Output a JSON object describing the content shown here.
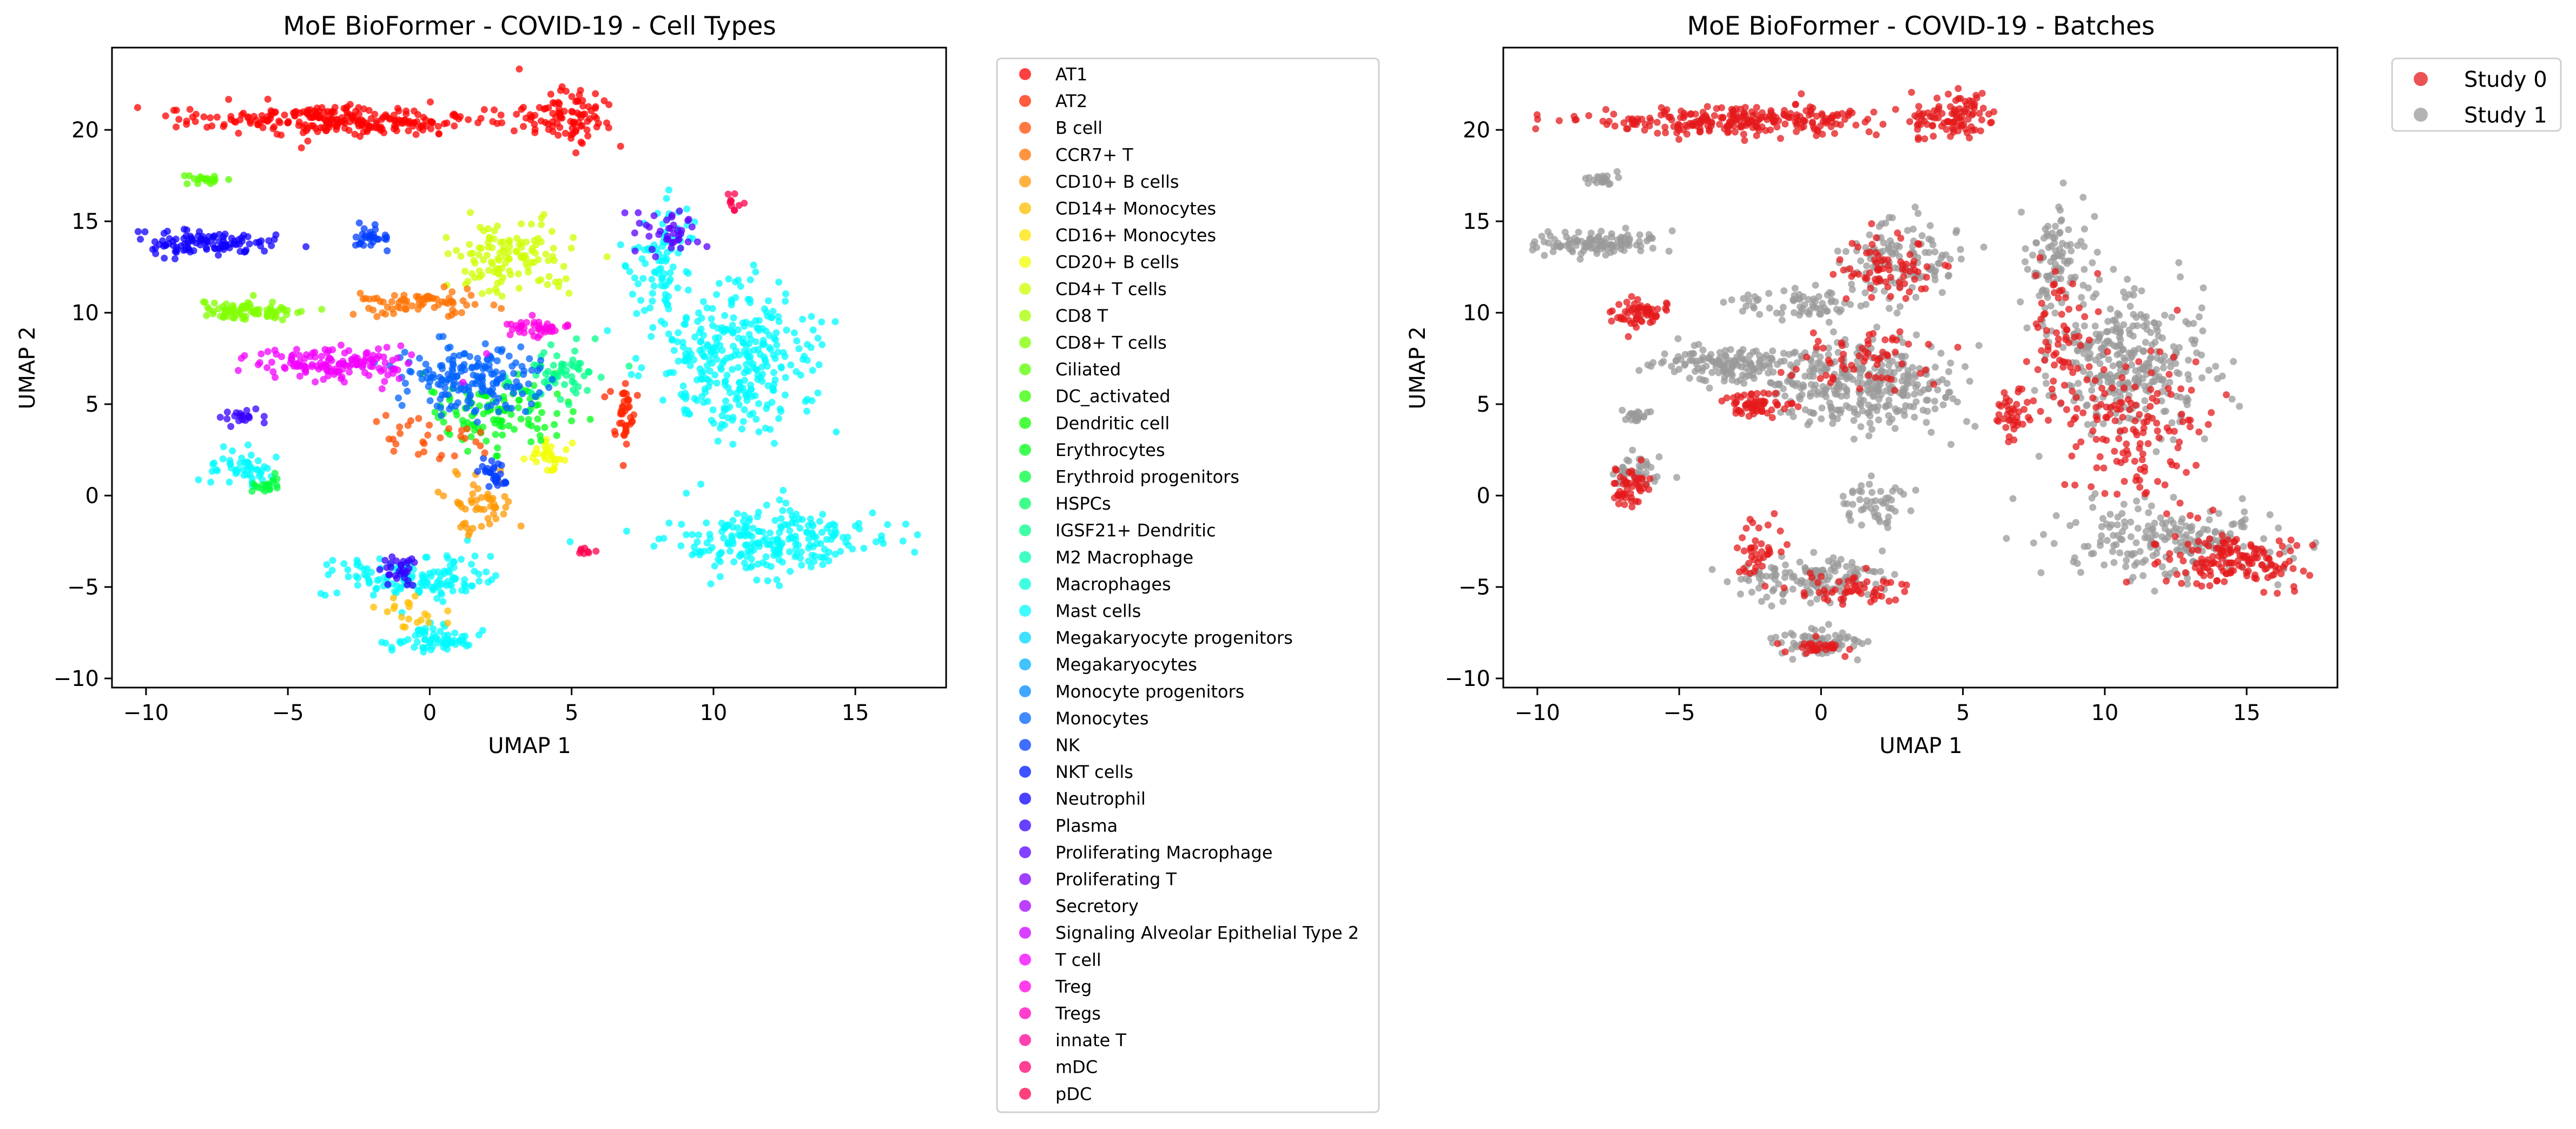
{
  "chart_data": [
    {
      "type": "scatter",
      "title": "MoE BioFormer - COVID-19 - Cell Types",
      "xlabel": "UMAP 1",
      "ylabel": "UMAP 2",
      "xlim": [
        -11.2,
        18.2
      ],
      "ylim": [
        -10.5,
        24.5
      ],
      "xticks": [
        -10,
        -5,
        0,
        5,
        10,
        15
      ],
      "yticks": [
        -10,
        -5,
        0,
        5,
        10,
        15,
        20
      ],
      "xtick_labels": [
        "−10",
        "−5",
        "0",
        "5",
        "10",
        "15"
      ],
      "ytick_labels": [
        "−10",
        "−5",
        "0",
        "5",
        "10",
        "15",
        "20"
      ],
      "grid": false,
      "legend_position": "outside-right",
      "legend": [
        {
          "label": "AT1",
          "color": "#ff0000"
        },
        {
          "label": "AT2",
          "color": "#ff2600"
        },
        {
          "label": "B cell",
          "color": "#ff4c00"
        },
        {
          "label": "CCR7+ T",
          "color": "#ff7200"
        },
        {
          "label": "CD10+ B cells",
          "color": "#ff9800"
        },
        {
          "label": "CD14+ Monocytes",
          "color": "#ffbe00"
        },
        {
          "label": "CD16+ Monocytes",
          "color": "#ffe400"
        },
        {
          "label": "CD20+ B cells",
          "color": "#f3ff00"
        },
        {
          "label": "CD4+ T cells",
          "color": "#cdff00"
        },
        {
          "label": "CD8 T",
          "color": "#a7ff00"
        },
        {
          "label": "CD8+ T cells",
          "color": "#81ff00"
        },
        {
          "label": "Ciliated",
          "color": "#5bff00"
        },
        {
          "label": "DC_activated",
          "color": "#35ff00"
        },
        {
          "label": "Dendritic cell",
          "color": "#0fff00"
        },
        {
          "label": "Erythrocytes",
          "color": "#00ff17"
        },
        {
          "label": "Erythroid progenitors",
          "color": "#00ff3d"
        },
        {
          "label": "HSPCs",
          "color": "#00ff63"
        },
        {
          "label": "IGSF21+ Dendritic",
          "color": "#00ff89"
        },
        {
          "label": "M2 Macrophage",
          "color": "#00ffaf"
        },
        {
          "label": "Macrophages",
          "color": "#00ffd5"
        },
        {
          "label": "Mast cells",
          "color": "#00fbff"
        },
        {
          "label": "Megakaryocyte progenitors",
          "color": "#00d5ff"
        },
        {
          "label": "Megakaryocytes",
          "color": "#00afff"
        },
        {
          "label": "Monocyte progenitors",
          "color": "#0089ff"
        },
        {
          "label": "Monocytes",
          "color": "#0063ff"
        },
        {
          "label": "NK",
          "color": "#003dff"
        },
        {
          "label": "NKT cells",
          "color": "#0017ff"
        },
        {
          "label": "Neutrophil",
          "color": "#0f00ff"
        },
        {
          "label": "Plasma",
          "color": "#3500ff"
        },
        {
          "label": "Proliferating Macrophage",
          "color": "#5b00ff"
        },
        {
          "label": "Proliferating T",
          "color": "#8100ff"
        },
        {
          "label": "Secretory",
          "color": "#a700ff"
        },
        {
          "label": "Signaling Alveolar Epithelial Type 2",
          "color": "#cd00ff"
        },
        {
          "label": "T cell",
          "color": "#f300ff"
        },
        {
          "label": "Treg",
          "color": "#ff00e4"
        },
        {
          "label": "Tregs",
          "color": "#ff00be"
        },
        {
          "label": "innate T",
          "color": "#ff0098"
        },
        {
          "label": "mDC",
          "color": "#ff0072"
        },
        {
          "label": "pDC",
          "color": "#ff004c"
        }
      ],
      "clusters": [
        {
          "group": "AT1",
          "cx": -3.0,
          "cy": 20.5,
          "sx": 4.8,
          "sy": 0.7,
          "n": 260
        },
        {
          "group": "AT1",
          "cx": 4.8,
          "cy": 20.8,
          "sx": 1.4,
          "sy": 1.3,
          "n": 90
        },
        {
          "group": "AT2",
          "cx": 6.8,
          "cy": 4.5,
          "sx": 0.5,
          "sy": 1.4,
          "n": 40
        },
        {
          "group": "Mast cells",
          "cx": 10.8,
          "cy": 7.5,
          "sx": 2.5,
          "sy": 3.5,
          "n": 320
        },
        {
          "group": "Mast cells",
          "cx": 12.0,
          "cy": -2.5,
          "sx": 3.5,
          "sy": 1.7,
          "n": 230
        },
        {
          "group": "Mast cells",
          "cx": 8.2,
          "cy": 13.0,
          "sx": 1.0,
          "sy": 2.7,
          "n": 90
        },
        {
          "group": "Mast cells",
          "cx": -0.5,
          "cy": -4.5,
          "sx": 2.5,
          "sy": 1.1,
          "n": 140
        },
        {
          "group": "Mast cells",
          "cx": 0.0,
          "cy": -8.0,
          "sx": 1.4,
          "sy": 0.7,
          "n": 70
        },
        {
          "group": "Mast cells",
          "cx": -6.5,
          "cy": 1.5,
          "sx": 1.0,
          "sy": 1.0,
          "n": 50
        },
        {
          "group": "CD4+ T cells",
          "cx": 2.8,
          "cy": 13.0,
          "sx": 2.0,
          "sy": 1.8,
          "n": 120
        },
        {
          "group": "CD20+ B cells",
          "cx": 4.2,
          "cy": 2.2,
          "sx": 0.6,
          "sy": 0.9,
          "n": 30
        },
        {
          "group": "CD10+ B cells",
          "cx": 1.9,
          "cy": -0.5,
          "sx": 1.1,
          "sy": 1.2,
          "n": 50
        },
        {
          "group": "CCR7+ T",
          "cx": -0.5,
          "cy": 10.5,
          "sx": 2.1,
          "sy": 0.7,
          "n": 70
        },
        {
          "group": "CD8+ T cells",
          "cx": -6.3,
          "cy": 10.1,
          "sx": 1.8,
          "sy": 0.6,
          "n": 80
        },
        {
          "group": "Ciliated",
          "cx": -7.8,
          "cy": 17.3,
          "sx": 0.8,
          "sy": 0.3,
          "n": 20
        },
        {
          "group": "Erythrocytes",
          "cx": 2.5,
          "cy": 4.5,
          "sx": 2.5,
          "sy": 1.6,
          "n": 110
        },
        {
          "group": "Erythroid progenitors",
          "cx": -5.8,
          "cy": 0.5,
          "sx": 0.4,
          "sy": 0.5,
          "n": 20
        },
        {
          "group": "IGSF21+ Dendritic",
          "cx": 4.5,
          "cy": 6.5,
          "sx": 1.2,
          "sy": 1.3,
          "n": 60
        },
        {
          "group": "Monocytes",
          "cx": 1.5,
          "cy": 6.5,
          "sx": 2.5,
          "sy": 1.6,
          "n": 180
        },
        {
          "group": "Neutrophil",
          "cx": -8.0,
          "cy": 13.8,
          "sx": 2.0,
          "sy": 0.6,
          "n": 110
        },
        {
          "group": "NK",
          "cx": -2.1,
          "cy": 14.0,
          "sx": 0.6,
          "sy": 0.8,
          "n": 30
        },
        {
          "group": "NK",
          "cx": 2.3,
          "cy": 1.0,
          "sx": 0.5,
          "sy": 0.8,
          "n": 30
        },
        {
          "group": "T cell",
          "cx": -3.2,
          "cy": 7.2,
          "sx": 2.5,
          "sy": 0.8,
          "n": 140
        },
        {
          "group": "Treg",
          "cx": 3.8,
          "cy": 9.2,
          "sx": 1.1,
          "sy": 0.5,
          "n": 40
        },
        {
          "group": "Plasma",
          "cx": -6.5,
          "cy": 4.3,
          "sx": 0.8,
          "sy": 0.4,
          "n": 20
        },
        {
          "group": "Plasma",
          "cx": -1.0,
          "cy": -4.2,
          "sx": 0.6,
          "sy": 0.8,
          "n": 30
        },
        {
          "group": "Proliferating Macrophage",
          "cx": 8.5,
          "cy": 14.5,
          "sx": 1.3,
          "sy": 1.2,
          "n": 40
        },
        {
          "group": "pDC",
          "cx": 5.4,
          "cy": -3.0,
          "sx": 0.3,
          "sy": 0.2,
          "n": 8
        },
        {
          "group": "pDC",
          "cx": 10.7,
          "cy": 16.0,
          "sx": 0.3,
          "sy": 0.4,
          "n": 10
        },
        {
          "group": "B cell",
          "cx": 0.5,
          "cy": 3.0,
          "sx": 2.0,
          "sy": 1.2,
          "n": 30
        },
        {
          "group": "CD14+ Monocytes",
          "cx": -0.5,
          "cy": -6.5,
          "sx": 1.2,
          "sy": 0.8,
          "n": 20
        }
      ]
    },
    {
      "type": "scatter",
      "title": "MoE BioFormer - COVID-19 - Batches",
      "xlabel": "UMAP 1",
      "ylabel": "UMAP 2",
      "xlim": [
        -11.2,
        18.2
      ],
      "ylim": [
        -10.5,
        24.5
      ],
      "xticks": [
        -10,
        -5,
        0,
        5,
        10,
        15
      ],
      "yticks": [
        -10,
        -5,
        0,
        5,
        10,
        15,
        20
      ],
      "xtick_labels": [
        "−10",
        "−5",
        "0",
        "5",
        "10",
        "15"
      ],
      "ytick_labels": [
        "−10",
        "−5",
        "0",
        "5",
        "10",
        "15",
        "20"
      ],
      "grid": false,
      "legend_position": "outside-right",
      "legend": [
        {
          "label": "Study 0",
          "color": "#e41a1c"
        },
        {
          "label": "Study 1",
          "color": "#999999"
        }
      ],
      "clusters": [
        {
          "group": "Study 1",
          "cx": 10.8,
          "cy": 7.5,
          "sx": 2.5,
          "sy": 3.5,
          "n": 320
        },
        {
          "group": "Study 1",
          "cx": 12.0,
          "cy": -2.5,
          "sx": 3.5,
          "sy": 1.7,
          "n": 200
        },
        {
          "group": "Study 1",
          "cx": 8.2,
          "cy": 13.0,
          "sx": 1.0,
          "sy": 2.7,
          "n": 90
        },
        {
          "group": "Study 1",
          "cx": -0.5,
          "cy": -4.5,
          "sx": 2.5,
          "sy": 1.1,
          "n": 140
        },
        {
          "group": "Study 1",
          "cx": 0.0,
          "cy": -8.0,
          "sx": 1.4,
          "sy": 0.7,
          "n": 70
        },
        {
          "group": "Study 1",
          "cx": 2.8,
          "cy": 13.0,
          "sx": 2.0,
          "sy": 1.8,
          "n": 120
        },
        {
          "group": "Study 1",
          "cx": 1.5,
          "cy": 6.0,
          "sx": 3.0,
          "sy": 2.0,
          "n": 320
        },
        {
          "group": "Study 1",
          "cx": -3.2,
          "cy": 7.2,
          "sx": 2.5,
          "sy": 0.8,
          "n": 140
        },
        {
          "group": "Study 1",
          "cx": -8.0,
          "cy": 13.8,
          "sx": 2.0,
          "sy": 0.6,
          "n": 110
        },
        {
          "group": "Study 1",
          "cx": -0.5,
          "cy": 10.5,
          "sx": 2.1,
          "sy": 0.7,
          "n": 70
        },
        {
          "group": "Study 1",
          "cx": 1.9,
          "cy": -0.5,
          "sx": 1.1,
          "sy": 1.2,
          "n": 50
        },
        {
          "group": "Study 1",
          "cx": -6.5,
          "cy": 1.5,
          "sx": 1.0,
          "sy": 1.0,
          "n": 40
        },
        {
          "group": "Study 1",
          "cx": -7.8,
          "cy": 17.3,
          "sx": 0.8,
          "sy": 0.3,
          "n": 20
        },
        {
          "group": "Study 1",
          "cx": -6.5,
          "cy": 4.3,
          "sx": 0.8,
          "sy": 0.4,
          "n": 20
        },
        {
          "group": "Study 0",
          "cx": -3.0,
          "cy": 20.5,
          "sx": 4.8,
          "sy": 0.7,
          "n": 260
        },
        {
          "group": "Study 0",
          "cx": 4.8,
          "cy": 20.8,
          "sx": 1.4,
          "sy": 1.3,
          "n": 90
        },
        {
          "group": "Study 0",
          "cx": 6.8,
          "cy": 4.5,
          "sx": 0.5,
          "sy": 1.4,
          "n": 40
        },
        {
          "group": "Study 0",
          "cx": -6.3,
          "cy": 10.0,
          "sx": 0.8,
          "sy": 0.7,
          "n": 60
        },
        {
          "group": "Study 0",
          "cx": -6.8,
          "cy": 0.3,
          "sx": 0.6,
          "sy": 0.9,
          "n": 50
        },
        {
          "group": "Study 0",
          "cx": -2.5,
          "cy": 5.0,
          "sx": 1.3,
          "sy": 0.6,
          "n": 60
        },
        {
          "group": "Study 0",
          "cx": 14.5,
          "cy": -3.5,
          "sx": 2.2,
          "sy": 1.3,
          "n": 150
        },
        {
          "group": "Study 0",
          "cx": 11.0,
          "cy": 4.0,
          "sx": 2.5,
          "sy": 4.0,
          "n": 140
        },
        {
          "group": "Study 0",
          "cx": 1.0,
          "cy": -5.0,
          "sx": 1.6,
          "sy": 0.8,
          "n": 50
        },
        {
          "group": "Study 0",
          "cx": -2.2,
          "cy": -3.2,
          "sx": 0.8,
          "sy": 1.5,
          "n": 40
        },
        {
          "group": "Study 0",
          "cx": 0.0,
          "cy": -8.3,
          "sx": 1.0,
          "sy": 0.4,
          "n": 30
        },
        {
          "group": "Study 0",
          "cx": 2.5,
          "cy": 12.5,
          "sx": 1.8,
          "sy": 1.5,
          "n": 70
        },
        {
          "group": "Study 0",
          "cx": 8.5,
          "cy": 9.0,
          "sx": 1.0,
          "sy": 3.0,
          "n": 60
        },
        {
          "group": "Study 0",
          "cx": 1.5,
          "cy": 7.5,
          "sx": 2.0,
          "sy": 1.5,
          "n": 60
        }
      ]
    }
  ]
}
